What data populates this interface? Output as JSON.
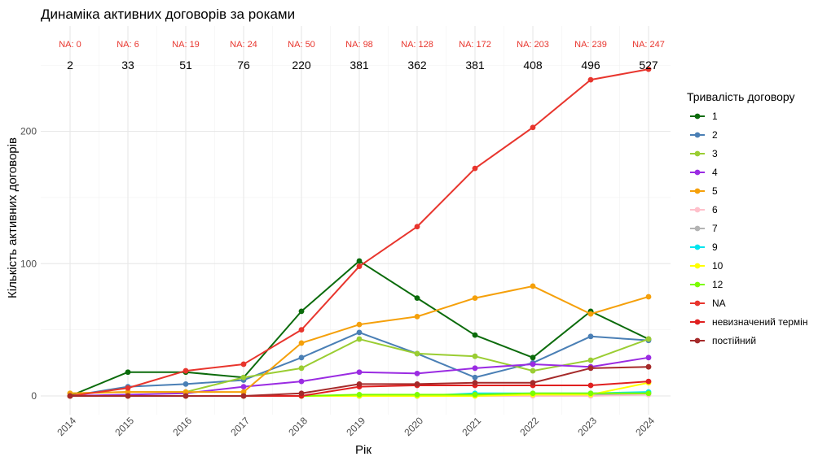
{
  "chart_data": {
    "type": "line",
    "title": "Динаміка активних договорів за роками",
    "xlabel": "Рік",
    "ylabel": "Кількість активних договорів",
    "ylim": [
      -14,
      262
    ],
    "yticks": [
      0,
      100,
      200
    ],
    "grid": true,
    "legend_title": "Тривалість договору",
    "legend_position": "right",
    "categories": [
      "2014",
      "2015",
      "2016",
      "2017",
      "2018",
      "2019",
      "2020",
      "2021",
      "2022",
      "2023",
      "2024"
    ],
    "na_labels": [
      "NA: 0",
      "NA: 6",
      "NA: 19",
      "NA: 24",
      "NA: 50",
      "NA: 98",
      "NA: 128",
      "NA: 172",
      "NA: 203",
      "NA: 239",
      "NA: 247"
    ],
    "totals": [
      "2",
      "33",
      "51",
      "76",
      "220",
      "381",
      "362",
      "381",
      "408",
      "496",
      "527"
    ],
    "series": [
      {
        "name": "1",
        "color": "#0b6b0b",
        "values": [
          0,
          18,
          18,
          14,
          64,
          102,
          74,
          46,
          29,
          64,
          43
        ]
      },
      {
        "name": "2",
        "color": "#4a7fb5",
        "values": [
          0,
          7,
          9,
          12,
          29,
          48,
          32,
          14,
          25,
          45,
          42
        ]
      },
      {
        "name": "3",
        "color": "#9acd32",
        "values": [
          2,
          3,
          3,
          14,
          21,
          43,
          32,
          30,
          19,
          27,
          43
        ]
      },
      {
        "name": "4",
        "color": "#9a2be2",
        "values": [
          0,
          1,
          2,
          7,
          11,
          18,
          17,
          21,
          24,
          22,
          29
        ]
      },
      {
        "name": "5",
        "color": "#f5a00a",
        "values": [
          2,
          3,
          3,
          3,
          40,
          54,
          60,
          74,
          83,
          62,
          75
        ]
      },
      {
        "name": "6",
        "color": "#ffc0cb",
        "values": [
          0,
          0,
          0,
          0,
          0,
          0,
          0,
          0,
          0,
          0,
          1
        ]
      },
      {
        "name": "7",
        "color": "#b3b3b3",
        "values": [
          0,
          0,
          0,
          0,
          0,
          0,
          0,
          1,
          1,
          1,
          2
        ]
      },
      {
        "name": "9",
        "color": "#00e5ee",
        "values": [
          0,
          0,
          0,
          0,
          0,
          0,
          0,
          2,
          2,
          2,
          3
        ]
      },
      {
        "name": "10",
        "color": "#ffff00",
        "values": [
          0,
          0,
          0,
          0,
          0,
          0,
          0,
          0,
          1,
          1,
          10
        ]
      },
      {
        "name": "12",
        "color": "#7cfc00",
        "values": [
          0,
          0,
          0,
          0,
          0,
          1,
          1,
          1,
          2,
          2,
          2
        ]
      },
      {
        "name": "NA",
        "color": "#e8352d",
        "values": [
          0,
          6,
          19,
          24,
          50,
          98,
          128,
          172,
          203,
          239,
          247
        ]
      },
      {
        "name": "невизначений термін",
        "color": "#e02020",
        "values": [
          0,
          0,
          0,
          0,
          0,
          7,
          8,
          8,
          8,
          8,
          11
        ]
      },
      {
        "name": "постійний",
        "color": "#a52a2a",
        "values": [
          0,
          0,
          0,
          0,
          2,
          9,
          9,
          10,
          10,
          21,
          22
        ]
      }
    ]
  }
}
